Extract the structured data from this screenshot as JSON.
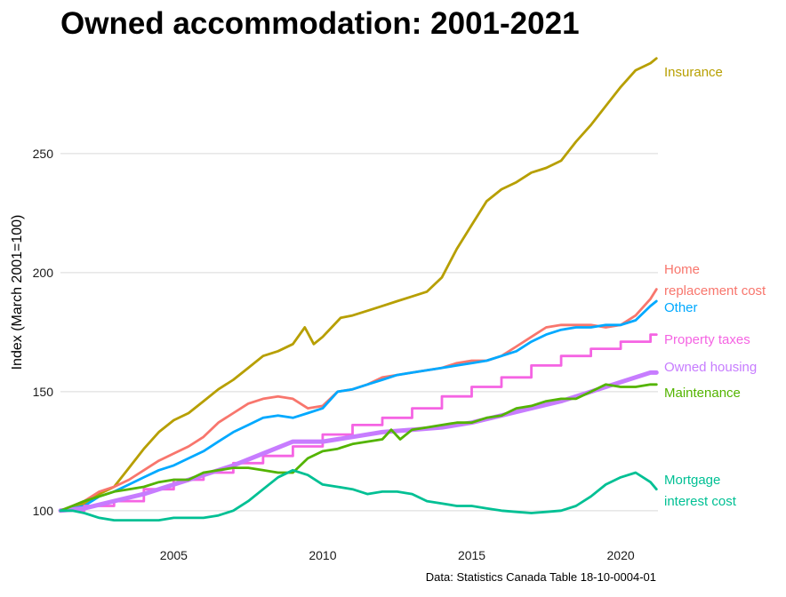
{
  "chart_data": {
    "type": "line",
    "title": "Owned accommodation: 2001-2021",
    "ylabel": "Index (March 2001=100)",
    "caption": "Data: Statistics Canada Table 18-10-0004-01",
    "xlim": [
      2001.2,
      2021.25
    ],
    "ylim": [
      88,
      294
    ],
    "xticks": [
      2005,
      2010,
      2015,
      2020
    ],
    "yticks": [
      100,
      150,
      200,
      250
    ],
    "grid": "horizontal major",
    "legend": "direct labels at line ends",
    "series": [
      {
        "name": "Insurance",
        "label_lines": [
          "Insurance"
        ],
        "color": "#B79F00",
        "width": 2.8,
        "points": [
          [
            2001.2,
            100
          ],
          [
            2001.6,
            101
          ],
          [
            2002.0,
            103
          ],
          [
            2002.5,
            107
          ],
          [
            2003.0,
            110
          ],
          [
            2003.5,
            118
          ],
          [
            2004.0,
            126
          ],
          [
            2004.5,
            133
          ],
          [
            2005.0,
            138
          ],
          [
            2005.5,
            141
          ],
          [
            2006.0,
            146
          ],
          [
            2006.5,
            151
          ],
          [
            2007.0,
            155
          ],
          [
            2007.5,
            160
          ],
          [
            2008.0,
            165
          ],
          [
            2008.5,
            167
          ],
          [
            2009.0,
            170
          ],
          [
            2009.4,
            177
          ],
          [
            2009.7,
            170
          ],
          [
            2010.0,
            173
          ],
          [
            2010.3,
            177
          ],
          [
            2010.6,
            181
          ],
          [
            2011.0,
            182
          ],
          [
            2011.5,
            184
          ],
          [
            2012.0,
            186
          ],
          [
            2012.5,
            188
          ],
          [
            2013.0,
            190
          ],
          [
            2013.5,
            192
          ],
          [
            2014.0,
            198
          ],
          [
            2014.5,
            210
          ],
          [
            2015.0,
            220
          ],
          [
            2015.5,
            230
          ],
          [
            2016.0,
            235
          ],
          [
            2016.5,
            238
          ],
          [
            2017.0,
            242
          ],
          [
            2017.5,
            244
          ],
          [
            2018.0,
            247
          ],
          [
            2018.5,
            255
          ],
          [
            2019.0,
            262
          ],
          [
            2019.5,
            270
          ],
          [
            2020.0,
            278
          ],
          [
            2020.5,
            285
          ],
          [
            2021.0,
            288
          ],
          [
            2021.2,
            290
          ]
        ]
      },
      {
        "name": "Home replacement cost",
        "label_lines": [
          "Home",
          "replacement cost"
        ],
        "color": "#F8766D",
        "width": 2.8,
        "points": [
          [
            2001.2,
            100
          ],
          [
            2001.6,
            102
          ],
          [
            2002.0,
            104
          ],
          [
            2002.5,
            108
          ],
          [
            2003.0,
            110
          ],
          [
            2003.5,
            113
          ],
          [
            2004.0,
            117
          ],
          [
            2004.5,
            121
          ],
          [
            2005.0,
            124
          ],
          [
            2005.5,
            127
          ],
          [
            2006.0,
            131
          ],
          [
            2006.5,
            137
          ],
          [
            2007.0,
            141
          ],
          [
            2007.5,
            145
          ],
          [
            2008.0,
            147
          ],
          [
            2008.5,
            148
          ],
          [
            2009.0,
            147
          ],
          [
            2009.5,
            143
          ],
          [
            2010.0,
            144
          ],
          [
            2010.5,
            150
          ],
          [
            2011.0,
            151
          ],
          [
            2011.5,
            153
          ],
          [
            2012.0,
            156
          ],
          [
            2012.5,
            157
          ],
          [
            2013.0,
            158
          ],
          [
            2013.5,
            159
          ],
          [
            2014.0,
            160
          ],
          [
            2014.5,
            162
          ],
          [
            2015.0,
            163
          ],
          [
            2015.5,
            163
          ],
          [
            2016.0,
            165
          ],
          [
            2016.5,
            169
          ],
          [
            2017.0,
            173
          ],
          [
            2017.5,
            177
          ],
          [
            2018.0,
            178
          ],
          [
            2018.5,
            178
          ],
          [
            2019.0,
            178
          ],
          [
            2019.5,
            177
          ],
          [
            2020.0,
            178
          ],
          [
            2020.5,
            182
          ],
          [
            2021.0,
            189
          ],
          [
            2021.2,
            193
          ]
        ]
      },
      {
        "name": "Other",
        "label_lines": [
          "Other"
        ],
        "color": "#00A9FF",
        "width": 2.8,
        "points": [
          [
            2001.2,
            100
          ],
          [
            2001.6,
            101
          ],
          [
            2002.0,
            102
          ],
          [
            2002.5,
            106
          ],
          [
            2003.0,
            108
          ],
          [
            2003.5,
            111
          ],
          [
            2004.0,
            114
          ],
          [
            2004.5,
            117
          ],
          [
            2005.0,
            119
          ],
          [
            2005.5,
            122
          ],
          [
            2006.0,
            125
          ],
          [
            2006.5,
            129
          ],
          [
            2007.0,
            133
          ],
          [
            2007.5,
            136
          ],
          [
            2008.0,
            139
          ],
          [
            2008.5,
            140
          ],
          [
            2009.0,
            139
          ],
          [
            2009.5,
            141
          ],
          [
            2010.0,
            143
          ],
          [
            2010.5,
            150
          ],
          [
            2011.0,
            151
          ],
          [
            2011.5,
            153
          ],
          [
            2012.0,
            155
          ],
          [
            2012.5,
            157
          ],
          [
            2013.0,
            158
          ],
          [
            2013.5,
            159
          ],
          [
            2014.0,
            160
          ],
          [
            2014.5,
            161
          ],
          [
            2015.0,
            162
          ],
          [
            2015.5,
            163
          ],
          [
            2016.0,
            165
          ],
          [
            2016.5,
            167
          ],
          [
            2017.0,
            171
          ],
          [
            2017.5,
            174
          ],
          [
            2018.0,
            176
          ],
          [
            2018.5,
            177
          ],
          [
            2019.0,
            177
          ],
          [
            2019.5,
            178
          ],
          [
            2020.0,
            178
          ],
          [
            2020.5,
            180
          ],
          [
            2021.0,
            186
          ],
          [
            2021.2,
            188
          ]
        ]
      },
      {
        "name": "Property taxes",
        "label_lines": [
          "Property taxes"
        ],
        "color": "#F564E3",
        "width": 2.8,
        "steps": true,
        "points": [
          [
            2001.2,
            100
          ],
          [
            2002.0,
            102
          ],
          [
            2003.0,
            104
          ],
          [
            2004.0,
            109
          ],
          [
            2005.0,
            113
          ],
          [
            2006.0,
            116
          ],
          [
            2007.0,
            120
          ],
          [
            2008.0,
            123
          ],
          [
            2009.0,
            127
          ],
          [
            2010.0,
            132
          ],
          [
            2011.0,
            136
          ],
          [
            2012.0,
            139
          ],
          [
            2013.0,
            143
          ],
          [
            2014.0,
            148
          ],
          [
            2015.0,
            152
          ],
          [
            2016.0,
            156
          ],
          [
            2017.0,
            161
          ],
          [
            2018.0,
            165
          ],
          [
            2019.0,
            168
          ],
          [
            2020.0,
            171
          ],
          [
            2021.0,
            174
          ],
          [
            2021.2,
            174
          ]
        ]
      },
      {
        "name": "Owned housing",
        "label_lines": [
          "Owned housing"
        ],
        "color": "#C77CFF",
        "width": 5,
        "points": [
          [
            2001.2,
            100
          ],
          [
            2002.0,
            101
          ],
          [
            2003.0,
            104
          ],
          [
            2004.0,
            107
          ],
          [
            2005.0,
            111
          ],
          [
            2006.0,
            115
          ],
          [
            2007.0,
            119
          ],
          [
            2008.0,
            124
          ],
          [
            2009.0,
            129
          ],
          [
            2010.0,
            129
          ],
          [
            2011.0,
            131
          ],
          [
            2012.0,
            133
          ],
          [
            2013.0,
            134
          ],
          [
            2014.0,
            135
          ],
          [
            2015.0,
            137
          ],
          [
            2016.0,
            140
          ],
          [
            2017.0,
            143
          ],
          [
            2018.0,
            146
          ],
          [
            2019.0,
            150
          ],
          [
            2020.0,
            154
          ],
          [
            2021.0,
            158
          ],
          [
            2021.2,
            158
          ]
        ]
      },
      {
        "name": "Maintenance",
        "label_lines": [
          "Maintenance"
        ],
        "color": "#53B400",
        "width": 2.8,
        "points": [
          [
            2001.2,
            100
          ],
          [
            2001.6,
            102
          ],
          [
            2002.0,
            104
          ],
          [
            2002.5,
            106
          ],
          [
            2003.0,
            108
          ],
          [
            2003.5,
            109
          ],
          [
            2004.0,
            110
          ],
          [
            2004.5,
            112
          ],
          [
            2005.0,
            113
          ],
          [
            2005.5,
            113
          ],
          [
            2006.0,
            116
          ],
          [
            2006.5,
            117
          ],
          [
            2007.0,
            118
          ],
          [
            2007.5,
            118
          ],
          [
            2008.0,
            117
          ],
          [
            2008.5,
            116
          ],
          [
            2009.0,
            116
          ],
          [
            2009.5,
            122
          ],
          [
            2010.0,
            125
          ],
          [
            2010.5,
            126
          ],
          [
            2011.0,
            128
          ],
          [
            2011.5,
            129
          ],
          [
            2012.0,
            130
          ],
          [
            2012.3,
            134
          ],
          [
            2012.6,
            130
          ],
          [
            2013.0,
            134
          ],
          [
            2013.5,
            135
          ],
          [
            2014.0,
            136
          ],
          [
            2014.5,
            137
          ],
          [
            2015.0,
            137
          ],
          [
            2015.5,
            139
          ],
          [
            2016.0,
            140
          ],
          [
            2016.5,
            143
          ],
          [
            2017.0,
            144
          ],
          [
            2017.5,
            146
          ],
          [
            2018.0,
            147
          ],
          [
            2018.5,
            147
          ],
          [
            2019.0,
            150
          ],
          [
            2019.5,
            153
          ],
          [
            2020.0,
            152
          ],
          [
            2020.5,
            152
          ],
          [
            2021.0,
            153
          ],
          [
            2021.2,
            153
          ]
        ]
      },
      {
        "name": "Mortgage interest cost",
        "label_lines": [
          "Mortgage",
          "interest cost"
        ],
        "color": "#00C094",
        "width": 2.8,
        "points": [
          [
            2001.2,
            100
          ],
          [
            2001.6,
            100
          ],
          [
            2002.0,
            99
          ],
          [
            2002.5,
            97
          ],
          [
            2003.0,
            96
          ],
          [
            2003.5,
            96
          ],
          [
            2004.0,
            96
          ],
          [
            2004.5,
            96
          ],
          [
            2005.0,
            97
          ],
          [
            2005.5,
            97
          ],
          [
            2006.0,
            97
          ],
          [
            2006.5,
            98
          ],
          [
            2007.0,
            100
          ],
          [
            2007.5,
            104
          ],
          [
            2008.0,
            109
          ],
          [
            2008.5,
            114
          ],
          [
            2009.0,
            117
          ],
          [
            2009.5,
            115
          ],
          [
            2010.0,
            111
          ],
          [
            2010.5,
            110
          ],
          [
            2011.0,
            109
          ],
          [
            2011.5,
            107
          ],
          [
            2012.0,
            108
          ],
          [
            2012.5,
            108
          ],
          [
            2013.0,
            107
          ],
          [
            2013.5,
            104
          ],
          [
            2014.0,
            103
          ],
          [
            2014.5,
            102
          ],
          [
            2015.0,
            102
          ],
          [
            2015.5,
            101
          ],
          [
            2016.0,
            100
          ],
          [
            2016.5,
            99.5
          ],
          [
            2017.0,
            99
          ],
          [
            2017.5,
            99.5
          ],
          [
            2018.0,
            100
          ],
          [
            2018.5,
            102
          ],
          [
            2019.0,
            106
          ],
          [
            2019.5,
            111
          ],
          [
            2020.0,
            114
          ],
          [
            2020.5,
            116
          ],
          [
            2021.0,
            112
          ],
          [
            2021.2,
            109
          ]
        ]
      }
    ]
  }
}
